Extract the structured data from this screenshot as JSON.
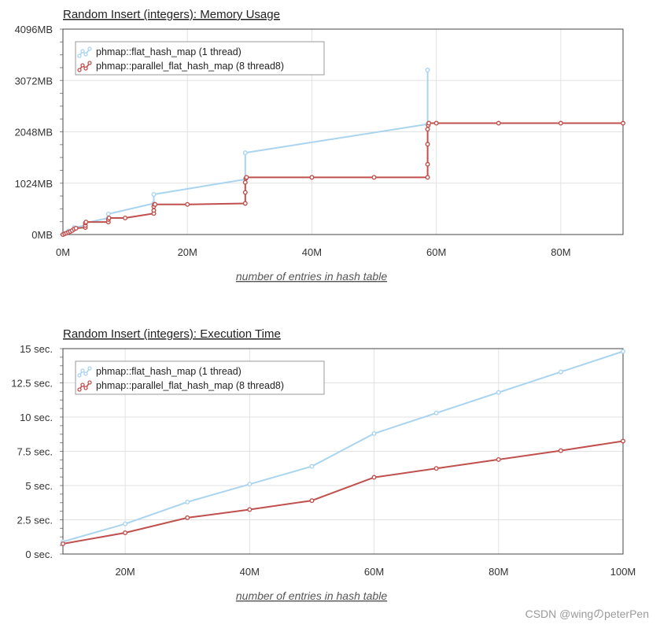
{
  "watermark": "CSDN @wingのpeterPen",
  "colors": {
    "flat": "#a9d4f0",
    "parallel": "#c0504d",
    "grid": "#e2e2e2",
    "frame": "#444444"
  },
  "chart_data": [
    {
      "type": "line",
      "title": "Random Insert (integers): Memory Usage",
      "xlabel": "number of entries in hash table",
      "ylabel": "",
      "xlim": [
        0,
        90
      ],
      "ylim": [
        0,
        4096
      ],
      "x_ticks": [
        0,
        20,
        40,
        60,
        80
      ],
      "x_tick_labels": [
        "0M",
        "20M",
        "40M",
        "60M",
        "80M"
      ],
      "y_ticks": [
        0,
        1024,
        2048,
        3072,
        4096
      ],
      "y_tick_labels": [
        "0MB",
        "1024MB",
        "2048MB",
        "3072MB",
        "4096MB"
      ],
      "grid": true,
      "legend_position": "top-left",
      "series": [
        {
          "name": "phmap::flat_hash_map (1 thread)",
          "color": "#a9d4f0",
          "x": [
            0,
            0.5,
            0.9,
            0.9,
            1.8,
            1.8,
            3.6,
            3.6,
            7.3,
            7.3,
            14.6,
            14.6,
            29.3,
            29.3,
            58.6,
            58.6
          ],
          "y": [
            0,
            25,
            50,
            70,
            100,
            140,
            180,
            230,
            330,
            410,
            620,
            800,
            1100,
            1630,
            2200,
            3280
          ]
        },
        {
          "name": "phmap::parallel_flat_hash_map (8 thread8)",
          "color": "#c0504d",
          "x": [
            0,
            0.3,
            0.6,
            0.9,
            1.2,
            1.5,
            1.8,
            2.1,
            3.6,
            3.6,
            3.6,
            3.7,
            7.3,
            7.3,
            7.4,
            10,
            14.6,
            14.6,
            14.6,
            14.7,
            14.8,
            20,
            29.3,
            29.3,
            29.3,
            29.4,
            29.5,
            40,
            50,
            58.6,
            58.6,
            58.6,
            58.6,
            58.7,
            58.8,
            60,
            70,
            80,
            90
          ],
          "y": [
            0,
            15,
            30,
            45,
            60,
            80,
            110,
            125,
            140,
            180,
            230,
            250,
            250,
            300,
            330,
            330,
            420,
            480,
            560,
            600,
            600,
            600,
            620,
            840,
            1040,
            1120,
            1140,
            1140,
            1140,
            1140,
            1400,
            1800,
            2100,
            2180,
            2220,
            2220,
            2220,
            2220,
            2220
          ]
        }
      ]
    },
    {
      "type": "line",
      "title": "Random Insert (integers): Execution Time",
      "xlabel": "number of entries in hash table",
      "ylabel": "",
      "xlim": [
        10,
        100
      ],
      "ylim": [
        0,
        15
      ],
      "x_ticks": [
        20,
        40,
        60,
        80,
        100
      ],
      "x_tick_labels": [
        "20M",
        "40M",
        "60M",
        "80M",
        "100M"
      ],
      "y_ticks": [
        0,
        2.5,
        5,
        7.5,
        10,
        12.5,
        15
      ],
      "y_tick_labels": [
        "0 sec.",
        "2.5 sec.",
        "5 sec.",
        "7.5 sec.",
        "10 sec.",
        "12.5 sec.",
        "15 sec."
      ],
      "grid": true,
      "legend_position": "top-left",
      "series": [
        {
          "name": "phmap::flat_hash_map (1 thread)",
          "color": "#a9d4f0",
          "x": [
            10,
            20,
            30,
            40,
            50,
            60,
            70,
            80,
            90,
            100
          ],
          "y": [
            0.9,
            2.2,
            3.8,
            5.1,
            6.4,
            8.8,
            10.3,
            11.8,
            13.3,
            14.8
          ]
        },
        {
          "name": "phmap::parallel_flat_hash_map (8 thread8)",
          "color": "#c0504d",
          "x": [
            10,
            20,
            30,
            40,
            50,
            60,
            70,
            80,
            90,
            100
          ],
          "y": [
            0.75,
            1.55,
            2.65,
            3.25,
            3.9,
            5.6,
            6.25,
            6.9,
            7.55,
            8.25
          ]
        }
      ]
    }
  ]
}
